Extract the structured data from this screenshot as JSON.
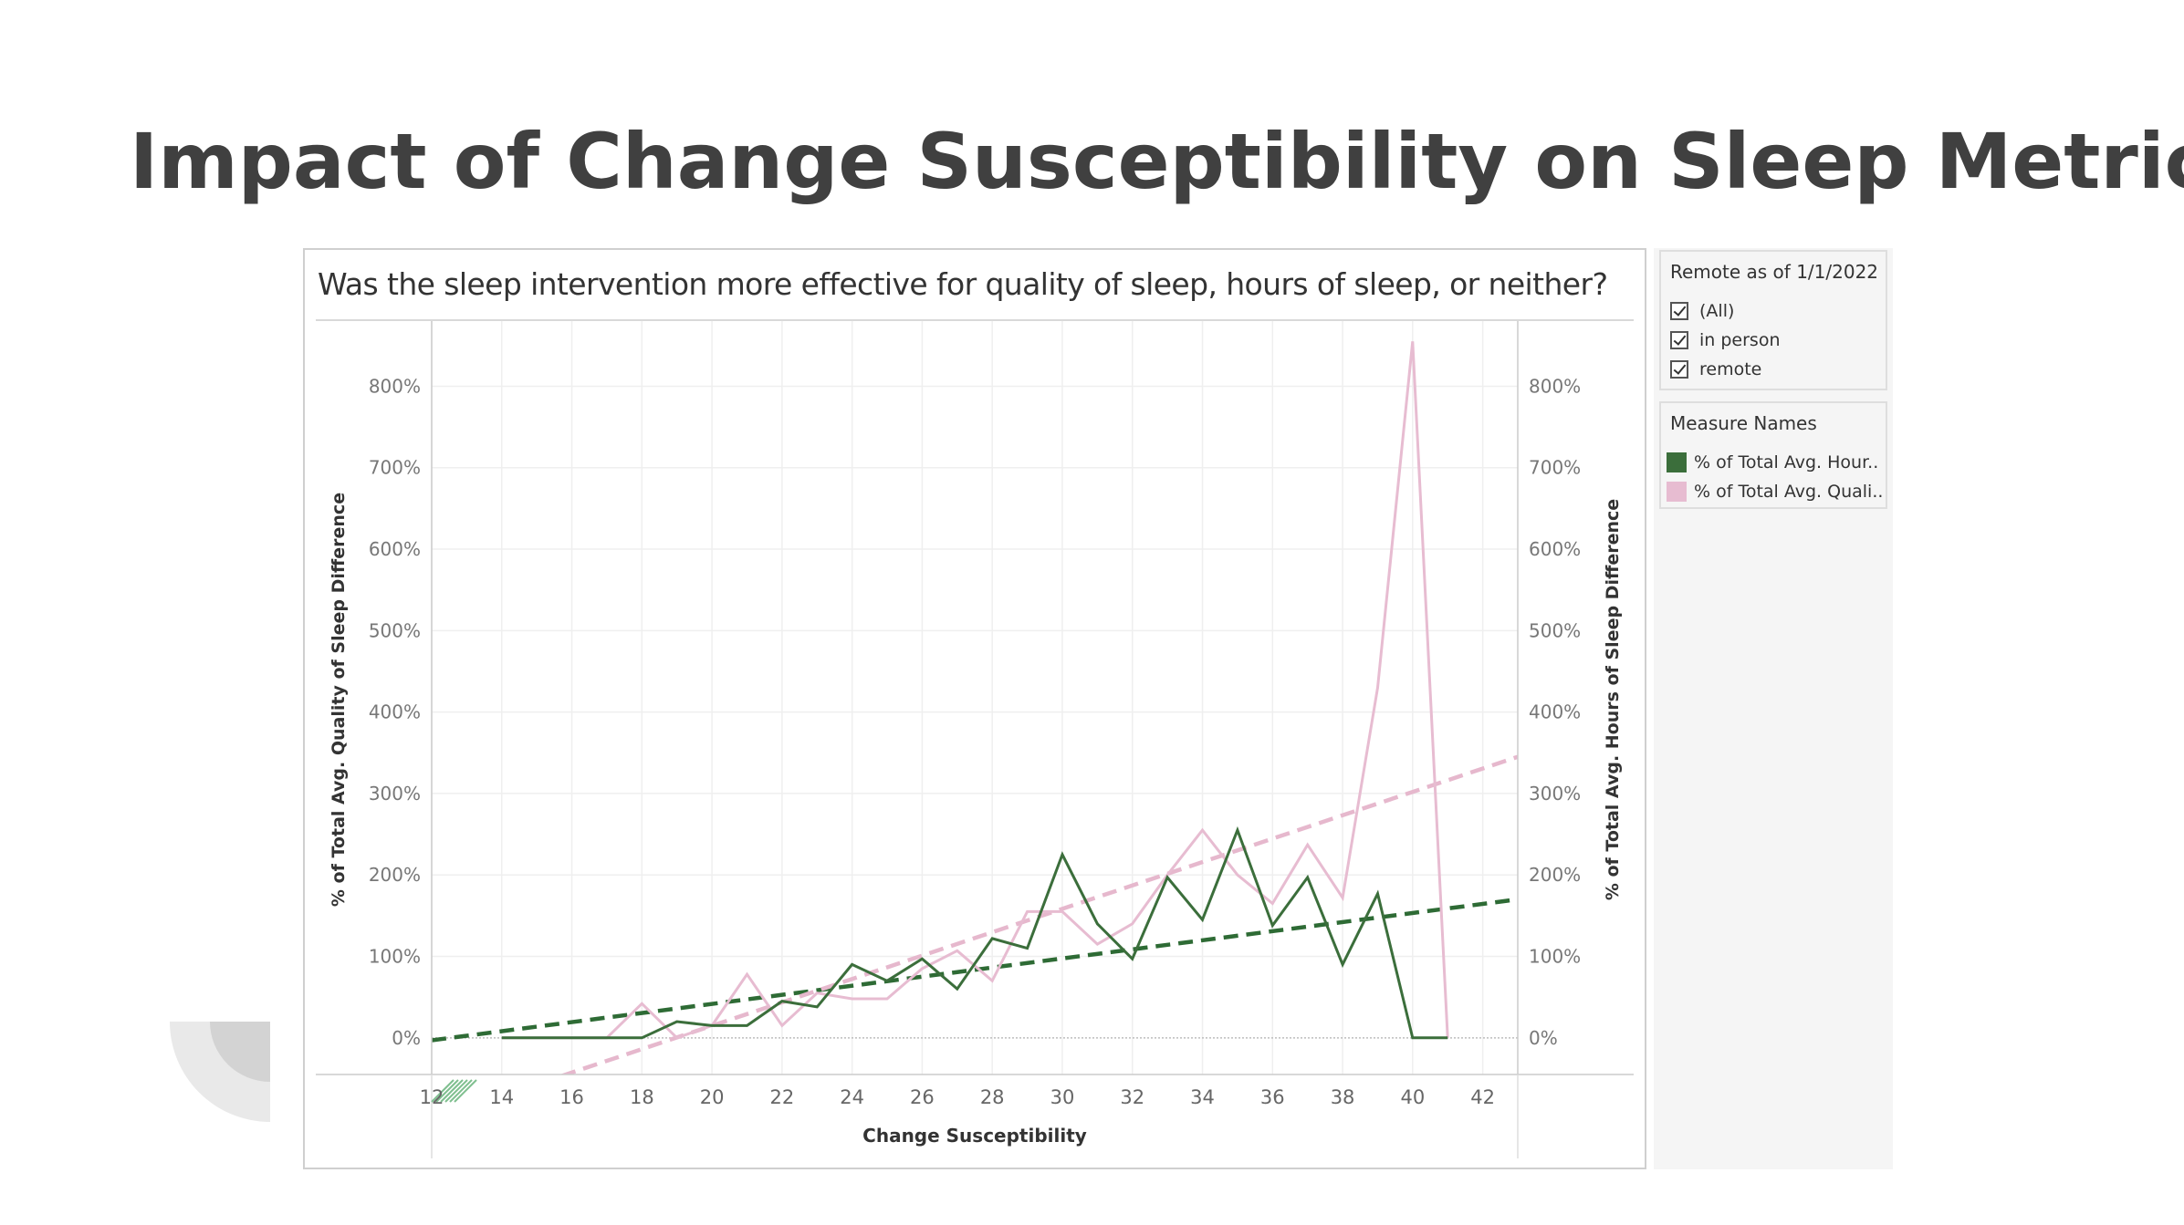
{
  "slide": {
    "title": "Impact of Change Susceptibility on Sleep Metrics"
  },
  "viz": {
    "subtitle": "Was the sleep intervention more effective for quality of sleep, hours of sleep, or neither?"
  },
  "filter": {
    "title": "Remote as of 1/1/2022",
    "options": [
      {
        "label": "(All)",
        "checked": true
      },
      {
        "label": "in person",
        "checked": true
      },
      {
        "label": "remote",
        "checked": true
      }
    ]
  },
  "legend": {
    "title": "Measure Names",
    "items": [
      {
        "label": "% of Total Avg. Hour..",
        "color": "#3b6e3b"
      },
      {
        "label": "% of Total Avg. Quali..",
        "color": "#e7bcd1"
      }
    ]
  },
  "chart_data": {
    "type": "line",
    "xlabel": "Change Susceptibility",
    "ylabel_left": "% of Total Avg. Quality of Sleep Difference",
    "ylabel_right": "% of Total Avg. Hours of Sleep Difference",
    "xlim": [
      12,
      43
    ],
    "ylim": [
      -45,
      880
    ],
    "x_ticks": [
      12,
      14,
      16,
      18,
      20,
      22,
      24,
      26,
      28,
      30,
      32,
      34,
      36,
      38,
      40,
      42
    ],
    "y_ticks": [
      0,
      100,
      200,
      300,
      400,
      500,
      600,
      700,
      800
    ],
    "y_tick_labels": [
      "0%",
      "100%",
      "200%",
      "300%",
      "400%",
      "500%",
      "600%",
      "700%",
      "800%"
    ],
    "grid": true,
    "colors": {
      "hours": "#3b6e3b",
      "quality": "#e7bcd1",
      "hours_trend": "#2e6b35",
      "quality_trend": "#e6b8cd"
    },
    "series": [
      {
        "key": "hours",
        "x": [
          14,
          15,
          16,
          17,
          18,
          19,
          20,
          21,
          22,
          23,
          24,
          25,
          26,
          27,
          28,
          29,
          30,
          31,
          32,
          33,
          34,
          35,
          36,
          37,
          38,
          39,
          40,
          41
        ],
        "values": [
          0,
          0,
          0,
          0,
          0,
          20,
          15,
          15,
          45,
          38,
          90,
          70,
          97,
          60,
          122,
          110,
          225,
          140,
          97,
          197,
          145,
          255,
          138,
          197,
          90,
          177,
          0,
          0
        ]
      },
      {
        "key": "quality",
        "x": [
          14,
          15,
          16,
          17,
          18,
          19,
          20,
          21,
          22,
          23,
          24,
          25,
          26,
          27,
          28,
          29,
          30,
          31,
          32,
          33,
          34,
          35,
          36,
          37,
          38,
          39,
          40,
          41
        ],
        "values": [
          0,
          0,
          0,
          0,
          42,
          0,
          15,
          78,
          15,
          55,
          48,
          48,
          85,
          107,
          70,
          155,
          155,
          115,
          140,
          200,
          255,
          200,
          165,
          237,
          172,
          430,
          855,
          0
        ]
      }
    ],
    "trendlines": [
      {
        "key": "hours",
        "x": [
          12,
          43
        ],
        "values": [
          -3,
          170
        ]
      },
      {
        "key": "quality",
        "x": [
          12,
          43
        ],
        "values": [
          -100,
          345
        ]
      }
    ]
  }
}
